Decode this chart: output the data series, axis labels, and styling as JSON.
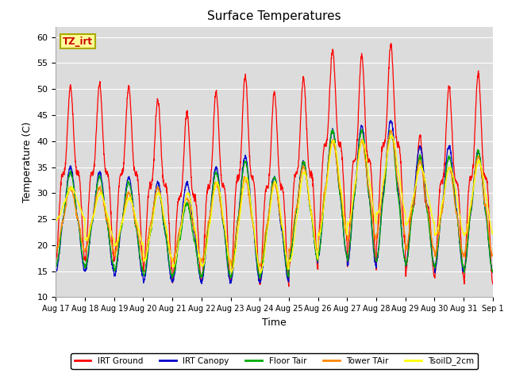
{
  "title": "Surface Temperatures",
  "xlabel": "Time",
  "ylabel": "Temperature (C)",
  "ylim": [
    10,
    62
  ],
  "n_days": 15,
  "x_tick_labels": [
    "Aug 17",
    "Aug 18",
    "Aug 19",
    "Aug 20",
    "Aug 21",
    "Aug 22",
    "Aug 23",
    "Aug 24",
    "Aug 25",
    "Aug 26",
    "Aug 27",
    "Aug 28",
    "Aug 29",
    "Aug 30",
    "Aug 31",
    "Sep 1"
  ],
  "annotation_text": "TZ_irt",
  "annotation_color": "#cc0000",
  "annotation_bg": "#ffff99",
  "annotation_border": "#aaaa00",
  "colors": {
    "IRT Ground": "#ff0000",
    "IRT Canopy": "#0000cc",
    "Floor Tair": "#00aa00",
    "Tower TAir": "#ff8800",
    "TsoilD_2cm": "#ffff00"
  },
  "plot_bg": "#dcdcdc",
  "fig_bg": "#ffffff",
  "grid_color": "#ffffff",
  "yticks": [
    10,
    15,
    20,
    25,
    30,
    35,
    40,
    45,
    50,
    55,
    60
  ]
}
